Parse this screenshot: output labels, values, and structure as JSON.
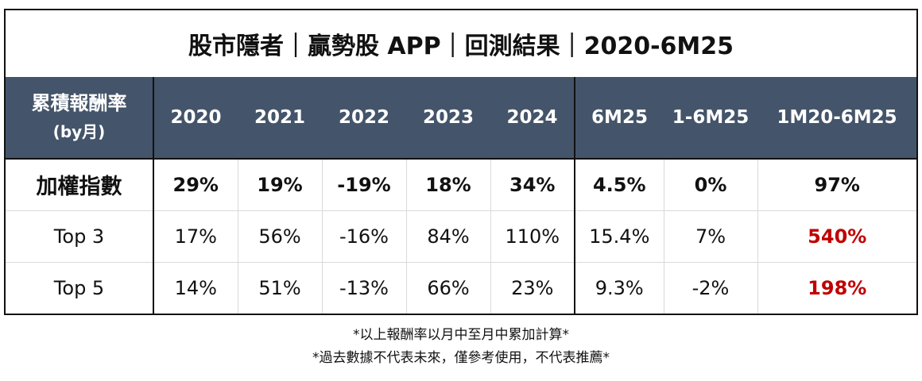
{
  "title": "股市隱者｜贏勢股 APP｜回測結果｜2020-6M25",
  "table": {
    "corner_label": "累積報酬率",
    "corner_sublabel": "(by月)",
    "columns": [
      "2020",
      "2021",
      "2022",
      "2023",
      "2024",
      "6M25",
      "1-6M25",
      "1M20-6M25"
    ],
    "rows": [
      {
        "label": "加權指數",
        "values": [
          "29%",
          "19%",
          "-19%",
          "18%",
          "34%",
          "4.5%",
          "0%",
          "97%"
        ]
      },
      {
        "label": "Top 3",
        "values": [
          "17%",
          "56%",
          "-16%",
          "84%",
          "110%",
          "15.4%",
          "7%",
          "540%"
        ]
      },
      {
        "label": "Top 5",
        "values": [
          "14%",
          "51%",
          "-13%",
          "66%",
          "23%",
          "9.3%",
          "-2%",
          "198%"
        ]
      }
    ]
  },
  "notes": [
    "*以上報酬率以月中至月中累加計算*",
    "*過去數據不代表未來，僅參考使用，不代表推薦*"
  ],
  "colors": {
    "header_bg": "#44546a",
    "highlight": "#c00000"
  }
}
